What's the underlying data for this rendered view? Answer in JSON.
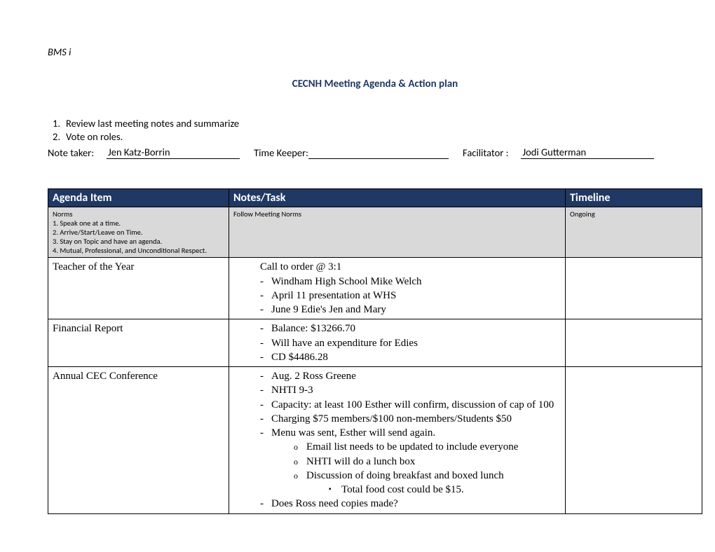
{
  "header": {
    "bms": "BMS i",
    "title": "CECNH Meeting Agenda & Action plan"
  },
  "prelist": [
    "Review last meeting notes and summarize",
    "Vote on roles."
  ],
  "roles": {
    "note_taker_label": "Note taker:",
    "note_taker_value": "Jen Katz-Borrin",
    "time_keeper_label": "Time Keeper:",
    "time_keeper_value": "",
    "facilitator_label": "Facilitator :",
    "facilitator_value": "Jodi Gutterman"
  },
  "table": {
    "headers": {
      "agenda_item": "Agenda Item",
      "notes_task": "Notes/Task",
      "timeline": "Timeline"
    },
    "norms": {
      "title": "Norms",
      "lines": [
        "1. Speak one at a time.",
        "2. Arrive/Start/Leave on Time.",
        "3. Stay on Topic and have an agenda.",
        "4. Mutual, Professional, and Unconditional Respect."
      ],
      "notes": "Follow Meeting Norms",
      "timeline": "Ongoing"
    },
    "rows": [
      {
        "item": "Teacher of the Year",
        "lead": "Call to order @ 3:1",
        "bullets": [
          "Windham High School Mike Welch",
          "April 11 presentation at WHS",
          "June 9 Edie's Jen and Mary"
        ],
        "timeline": ""
      },
      {
        "item": "Financial Report",
        "bullets": [
          "Balance: $13266.70",
          "Will have an expenditure for Edies",
          "CD $4486.28"
        ],
        "timeline": ""
      },
      {
        "item": "Annual CEC Conference",
        "bullets": [
          "Aug. 2 Ross Greene",
          "NHTI 9-3",
          "Capacity: at least 100 Esther will confirm, discussion of cap of 100",
          "Charging $75 members/$100 non-members/Students $50",
          {
            "text": "Menu was sent, Esther will send again.",
            "sub_o": [
              "Email list needs to be updated to include everyone",
              "NHTI will do a lunch box",
              {
                "text": "Discussion of doing breakfast and boxed lunch",
                "sub_sq": [
                  "Total food cost could be $15."
                ]
              }
            ]
          },
          "Does Ross need copies made?"
        ],
        "timeline": ""
      }
    ]
  },
  "colors": {
    "header_bg": "#1f3864",
    "header_fg": "#ffffff",
    "norms_bg": "#d9d9d9",
    "title_color": "#1f3864",
    "border": "#000000"
  }
}
